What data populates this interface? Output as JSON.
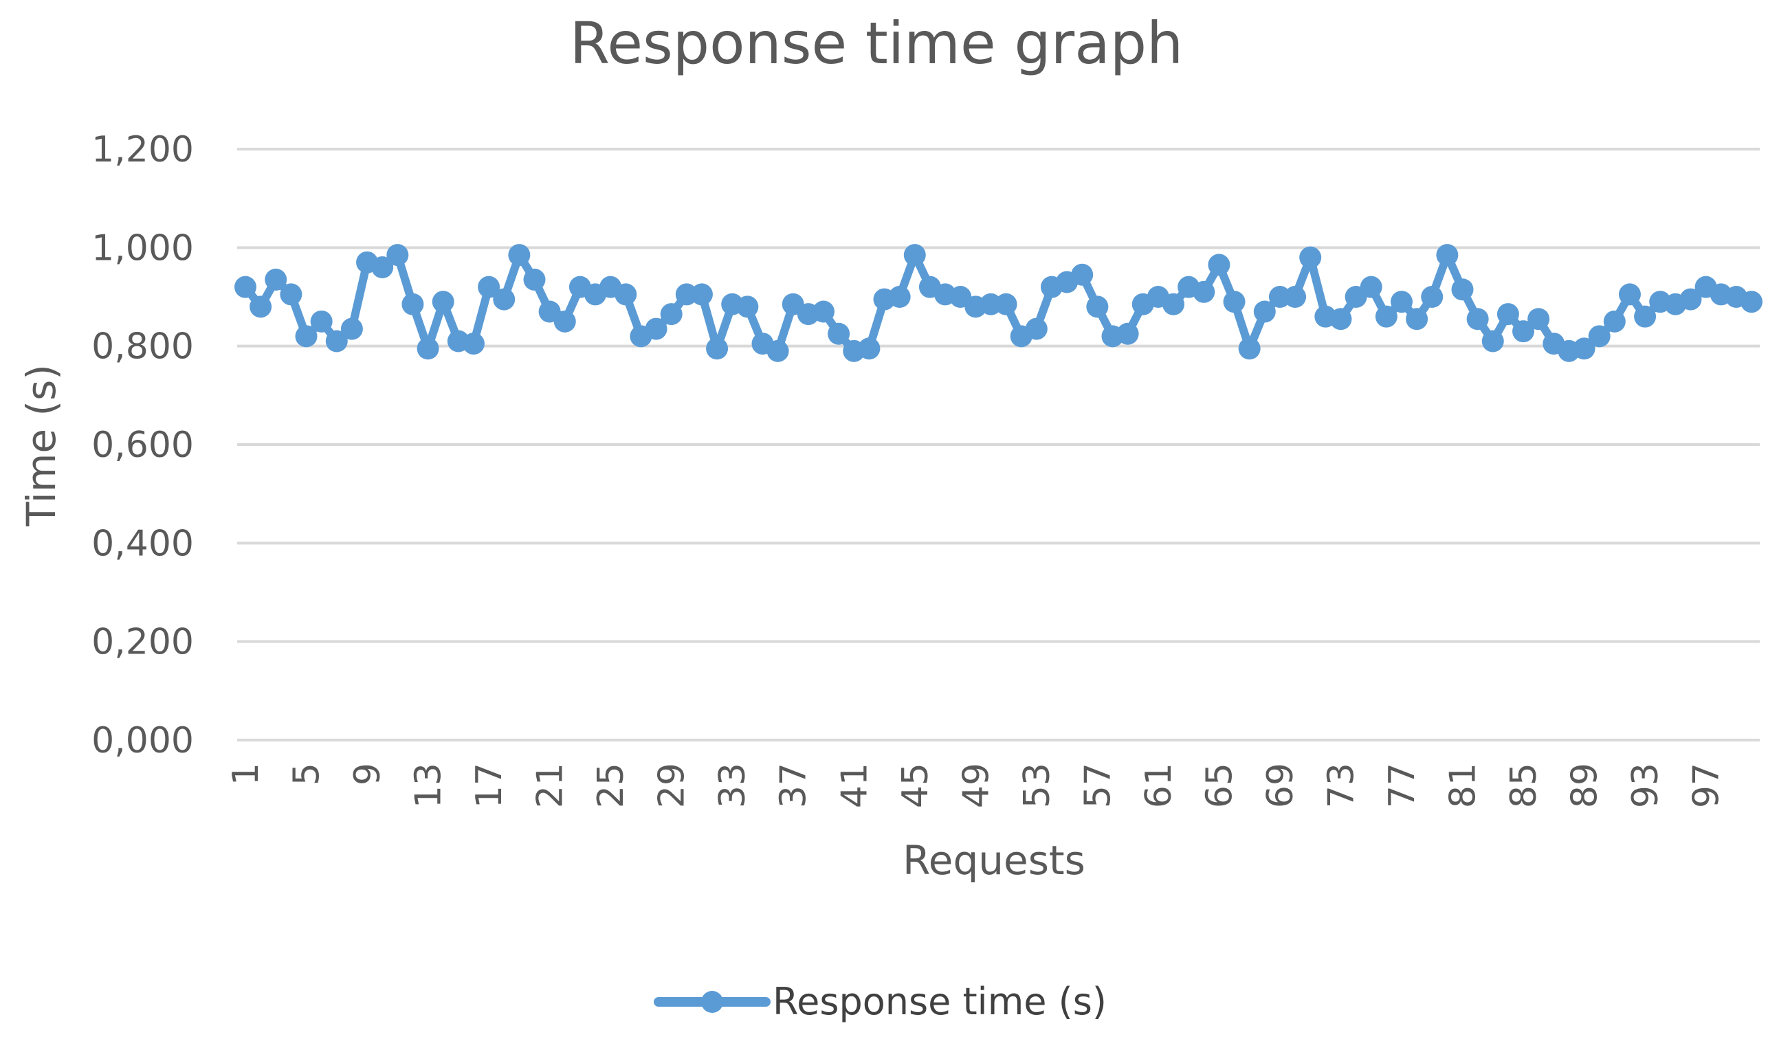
{
  "chart_data": {
    "type": "line",
    "title": "Response time graph",
    "xlabel": "Requests",
    "ylabel": "Time (s)",
    "ylim": [
      0,
      1.2
    ],
    "y_ticks": [
      {
        "value": 0.0,
        "label": "0,000"
      },
      {
        "value": 0.2,
        "label": "0,200"
      },
      {
        "value": 0.4,
        "label": "0,400"
      },
      {
        "value": 0.6,
        "label": "0,600"
      },
      {
        "value": 0.8,
        "label": "0,800"
      },
      {
        "value": 1.0,
        "label": "1,000"
      },
      {
        "value": 1.2,
        "label": "1,200"
      }
    ],
    "x_tick_labels": [
      "1",
      "5",
      "9",
      "13",
      "17",
      "21",
      "25",
      "29",
      "33",
      "37",
      "41",
      "45",
      "49",
      "53",
      "57",
      "61",
      "65",
      "69",
      "73",
      "77",
      "81",
      "85",
      "89",
      "93",
      "97"
    ],
    "x_tick_values": [
      1,
      5,
      9,
      13,
      17,
      21,
      25,
      29,
      33,
      37,
      41,
      45,
      49,
      53,
      57,
      61,
      65,
      69,
      73,
      77,
      81,
      85,
      89,
      93,
      97
    ],
    "x": [
      1,
      2,
      3,
      4,
      5,
      6,
      7,
      8,
      9,
      10,
      11,
      12,
      13,
      14,
      15,
      16,
      17,
      18,
      19,
      20,
      21,
      22,
      23,
      24,
      25,
      26,
      27,
      28,
      29,
      30,
      31,
      32,
      33,
      34,
      35,
      36,
      37,
      38,
      39,
      40,
      41,
      42,
      43,
      44,
      45,
      46,
      47,
      48,
      49,
      50,
      51,
      52,
      53,
      54,
      55,
      56,
      57,
      58,
      59,
      60,
      61,
      62,
      63,
      64,
      65,
      66,
      67,
      68,
      69,
      70,
      71,
      72,
      73,
      74,
      75,
      76,
      77,
      78,
      79,
      80,
      81,
      82,
      83,
      84,
      85,
      86,
      87,
      88,
      89,
      90,
      91,
      92,
      93,
      94,
      95,
      96,
      97,
      98,
      99,
      100
    ],
    "series": [
      {
        "name": "Response time (s)",
        "color": "#5b9bd5",
        "values": [
          0.92,
          0.88,
          0.935,
          0.905,
          0.82,
          0.85,
          0.81,
          0.835,
          0.97,
          0.96,
          0.985,
          0.885,
          0.795,
          0.89,
          0.81,
          0.805,
          0.92,
          0.895,
          0.985,
          0.935,
          0.87,
          0.85,
          0.92,
          0.905,
          0.92,
          0.905,
          0.82,
          0.835,
          0.865,
          0.905,
          0.905,
          0.795,
          0.885,
          0.88,
          0.805,
          0.79,
          0.885,
          0.865,
          0.87,
          0.825,
          0.79,
          0.795,
          0.895,
          0.9,
          0.985,
          0.92,
          0.905,
          0.9,
          0.88,
          0.885,
          0.885,
          0.82,
          0.835,
          0.92,
          0.93,
          0.945,
          0.88,
          0.82,
          0.825,
          0.885,
          0.9,
          0.885,
          0.92,
          0.91,
          0.965,
          0.89,
          0.795,
          0.87,
          0.9,
          0.9,
          0.98,
          0.86,
          0.855,
          0.9,
          0.92,
          0.86,
          0.89,
          0.855,
          0.9,
          0.985,
          0.915,
          0.855,
          0.81,
          0.865,
          0.83,
          0.855,
          0.805,
          0.79,
          0.795,
          0.82,
          0.85,
          0.905,
          0.86,
          0.89,
          0.885,
          0.895,
          0.92,
          0.905,
          0.9,
          0.89
        ]
      }
    ],
    "grid": true,
    "legend": "bottom"
  }
}
